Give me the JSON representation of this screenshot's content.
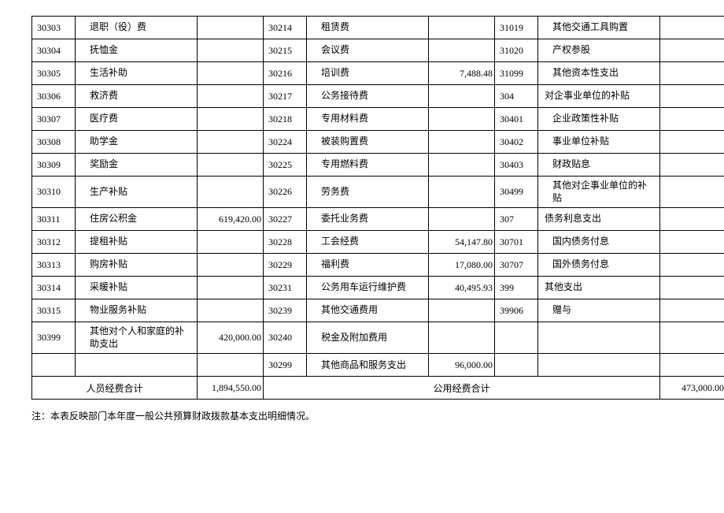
{
  "rows": [
    {
      "c1": "30303",
      "n1": "退职（役）费",
      "a1": "",
      "c2": "30214",
      "n2": "租赁费",
      "a2": "",
      "c3": "31019",
      "n3": "其他交通工具购置",
      "a3": "",
      "n1_indent": true,
      "n2_indent": true,
      "n3_indent": true
    },
    {
      "c1": "30304",
      "n1": "抚恤金",
      "a1": "",
      "c2": "30215",
      "n2": "会议费",
      "a2": "",
      "c3": "31020",
      "n3": "产权参股",
      "a3": "",
      "n1_indent": true,
      "n2_indent": true,
      "n3_indent": true
    },
    {
      "c1": "30305",
      "n1": "生活补助",
      "a1": "",
      "c2": "30216",
      "n2": "培训费",
      "a2": "7,488.48",
      "c3": "31099",
      "n3": "其他资本性支出",
      "a3": "",
      "n1_indent": true,
      "n2_indent": true,
      "n3_indent": true
    },
    {
      "c1": "30306",
      "n1": "救济费",
      "a1": "",
      "c2": "30217",
      "n2": "公务接待费",
      "a2": "",
      "c3": "304",
      "n3": "对企事业单位的补贴",
      "a3": "",
      "n1_indent": true,
      "n2_indent": true,
      "n3_indent": false
    },
    {
      "c1": "30307",
      "n1": "医疗费",
      "a1": "",
      "c2": "30218",
      "n2": "专用材料费",
      "a2": "",
      "c3": "30401",
      "n3": "企业政策性补贴",
      "a3": "",
      "n1_indent": true,
      "n2_indent": true,
      "n3_indent": true
    },
    {
      "c1": "30308",
      "n1": "助学金",
      "a1": "",
      "c2": "30224",
      "n2": "被装购置费",
      "a2": "",
      "c3": "30402",
      "n3": "事业单位补贴",
      "a3": "",
      "n1_indent": true,
      "n2_indent": true,
      "n3_indent": true
    },
    {
      "c1": "30309",
      "n1": "奖励金",
      "a1": "",
      "c2": "30225",
      "n2": "专用燃料费",
      "a2": "",
      "c3": "30403",
      "n3": "财政贴息",
      "a3": "",
      "n1_indent": true,
      "n2_indent": true,
      "n3_indent": true
    },
    {
      "c1": "30310",
      "n1": "生产补贴",
      "a1": "",
      "c2": "30226",
      "n2": "劳务费",
      "a2": "",
      "c3": "30499",
      "n3": "其他对企事业单位的补贴",
      "a3": "",
      "n1_indent": true,
      "n2_indent": true,
      "n3_indent": true
    },
    {
      "c1": "30311",
      "n1": "住房公积金",
      "a1": "619,420.00",
      "c2": "30227",
      "n2": "委托业务费",
      "a2": "",
      "c3": "307",
      "n3": "债务利息支出",
      "a3": "",
      "n1_indent": true,
      "n2_indent": true,
      "n3_indent": false
    },
    {
      "c1": "30312",
      "n1": "提租补贴",
      "a1": "",
      "c2": "30228",
      "n2": "工会经费",
      "a2": "54,147.80",
      "c3": "30701",
      "n3": "国内债务付息",
      "a3": "",
      "n1_indent": true,
      "n2_indent": true,
      "n3_indent": true
    },
    {
      "c1": "30313",
      "n1": "购房补贴",
      "a1": "",
      "c2": "30229",
      "n2": "福利费",
      "a2": "17,080.00",
      "c3": "30707",
      "n3": "国外债务付息",
      "a3": "",
      "n1_indent": true,
      "n2_indent": true,
      "n3_indent": true
    },
    {
      "c1": "30314",
      "n1": "采暖补贴",
      "a1": "",
      "c2": "30231",
      "n2": "公务用车运行维护费",
      "a2": "40,495.93",
      "c3": "399",
      "n3": "其他支出",
      "a3": "",
      "n1_indent": true,
      "n2_indent": true,
      "n3_indent": false
    },
    {
      "c1": "30315",
      "n1": "物业服务补贴",
      "a1": "",
      "c2": "30239",
      "n2": "其他交通费用",
      "a2": "",
      "c3": "39906",
      "n3": "赠与",
      "a3": "",
      "n1_indent": true,
      "n2_indent": true,
      "n3_indent": true
    },
    {
      "c1": "30399",
      "n1": "其他对个人和家庭的补助支出",
      "a1": "420,000.00",
      "c2": "30240",
      "n2": "税金及附加费用",
      "a2": "",
      "c3": "",
      "n3": "",
      "a3": "",
      "n1_indent": true,
      "n2_indent": true,
      "n3_indent": false
    },
    {
      "c1": "",
      "n1": "",
      "a1": "",
      "c2": "30299",
      "n2": "其他商品和服务支出",
      "a2": "96,000.00",
      "c3": "",
      "n3": "",
      "a3": "",
      "n1_indent": false,
      "n2_indent": true,
      "n3_indent": false
    }
  ],
  "totals": {
    "label1": "人员经费合计",
    "value1": "1,894,550.00",
    "label2": "公用经费合计",
    "value2": "473,000.00"
  },
  "footnote": "注：本表反映部门本年度一般公共预算财政拨款基本支出明细情况。"
}
